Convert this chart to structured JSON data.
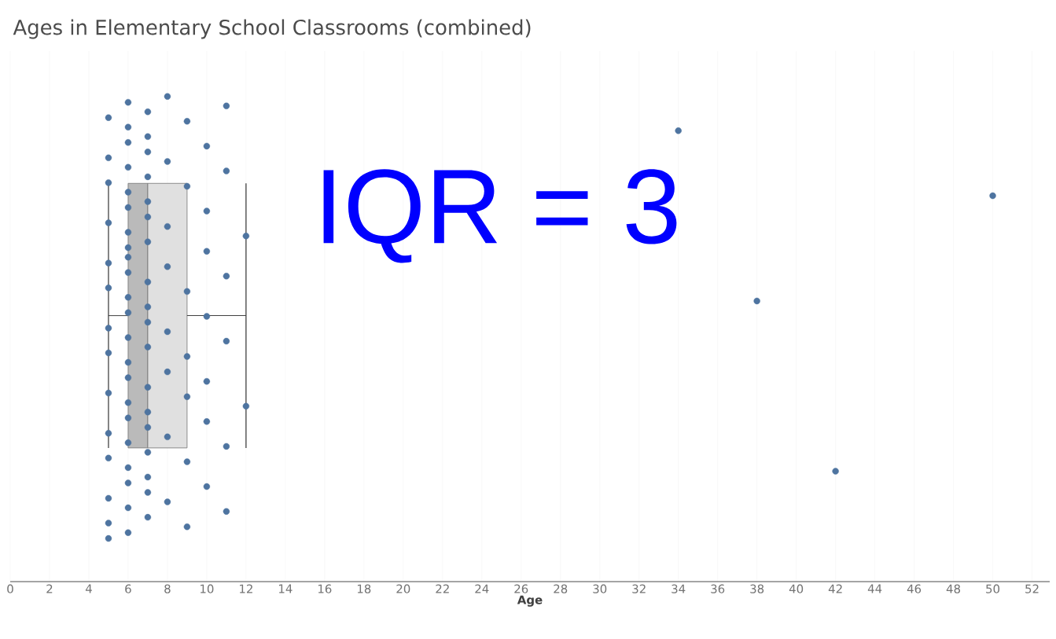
{
  "chart_data": {
    "type": "box",
    "title": "Ages in Elementary School Classrooms (combined)",
    "xlabel": "Age",
    "orientation": "horizontal",
    "categories": [
      null
    ],
    "boxes": [
      {
        "low": 5,
        "q1": 6,
        "median": 7,
        "q3": 9,
        "high": 12
      }
    ],
    "xlim": [
      0,
      52.9
    ],
    "xticks": [
      0,
      2,
      4,
      6,
      8,
      10,
      12,
      14,
      16,
      18,
      20,
      22,
      24,
      26,
      28,
      30,
      32,
      34,
      36,
      38,
      40,
      42,
      44,
      46,
      48,
      50,
      52
    ],
    "grid": "x",
    "tick_labels": "x",
    "annotations": [
      "IQR = 3"
    ],
    "series": [
      {
        "type": "scatter",
        "marker": "circle",
        "color": "#4e74a0",
        "x": [
          null,
          null,
          null,
          null,
          null,
          null,
          null,
          null,
          null,
          null,
          null,
          null,
          null,
          null,
          null,
          null,
          null,
          null,
          null,
          null,
          null,
          null,
          null,
          null,
          null,
          null,
          null,
          null,
          null,
          null,
          null,
          null,
          null,
          null,
          null,
          null,
          null,
          null,
          null,
          null,
          null,
          null,
          null,
          null,
          null,
          null,
          null,
          null,
          null,
          null,
          null,
          null,
          null,
          null,
          null,
          null,
          null,
          null,
          null,
          null,
          null,
          null,
          null,
          null,
          null,
          null,
          null,
          null,
          null,
          null,
          null,
          null,
          null,
          null,
          null,
          null,
          null,
          null,
          null,
          null,
          null,
          null,
          null,
          null,
          null,
          null,
          null,
          null
        ],
        "values": [
          5,
          5,
          5,
          5,
          5,
          5,
          5,
          5,
          5,
          5,
          5,
          5,
          5,
          5,
          6,
          6,
          6,
          6,
          6,
          6,
          6,
          6,
          6,
          6,
          6,
          6,
          6,
          6,
          6,
          6,
          6,
          6,
          6,
          6,
          6,
          6,
          7,
          7,
          7,
          7,
          7,
          7,
          7,
          7,
          7,
          7,
          7,
          7,
          7,
          7,
          7,
          7,
          7,
          7,
          8,
          8,
          8,
          8,
          8,
          8,
          8,
          8,
          9,
          9,
          9,
          9,
          9,
          9,
          9,
          10,
          10,
          10,
          10,
          10,
          10,
          10,
          11,
          11,
          11,
          11,
          11,
          11,
          12,
          12,
          34,
          38,
          42,
          50
        ]
      }
    ]
  }
}
